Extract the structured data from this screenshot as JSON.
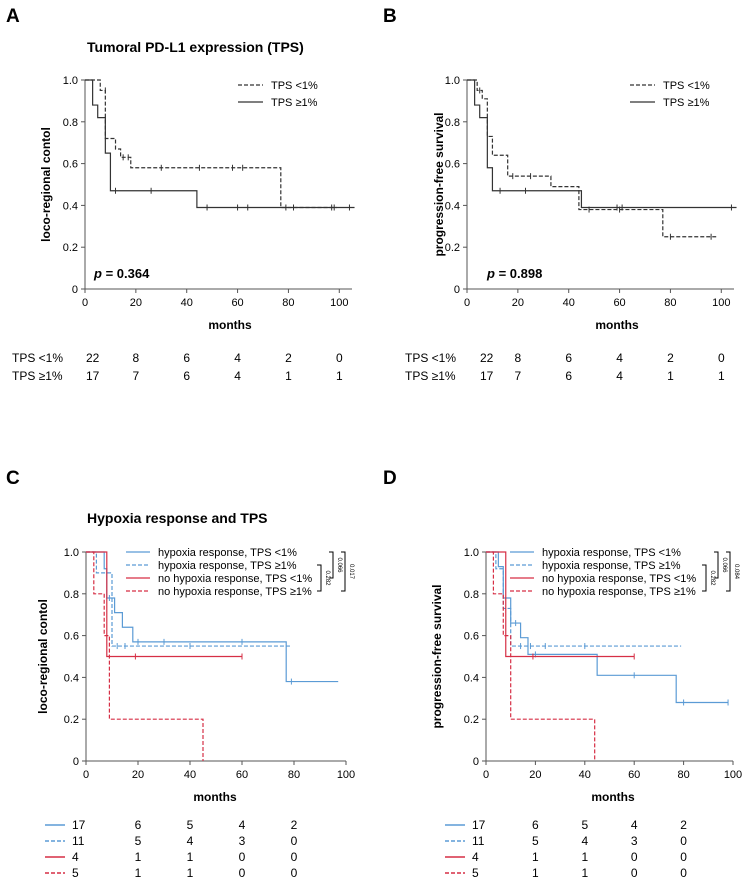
{
  "figure": {
    "title_top": "Tumoral PD-L1 expression (TPS)",
    "title_bottom": "Hypoxia response and TPS",
    "panel_labels": [
      "A",
      "B",
      "C",
      "D"
    ]
  },
  "chart_data": [
    {
      "panel": "A",
      "type": "line",
      "subtype": "kaplan-meier",
      "ylabel": "loco-regional contol",
      "xlabel": "months",
      "xlim": [
        0,
        105
      ],
      "ylim": [
        0,
        1.0
      ],
      "xticks": [
        0,
        20,
        40,
        60,
        80,
        100
      ],
      "yticks": [
        0,
        0.2,
        0.4,
        0.6,
        0.8,
        1.0
      ],
      "p_value": "0.364",
      "series": [
        {
          "name": "TPS <1%",
          "style": "dashed",
          "color": "#333333",
          "steps": [
            [
              0,
              1.0
            ],
            [
              6,
              0.95
            ],
            [
              8,
              0.72
            ],
            [
              12,
              0.67
            ],
            [
              14,
              0.63
            ],
            [
              18,
              0.58
            ],
            [
              77,
              0.39
            ],
            [
              99,
              0.39
            ]
          ],
          "censors": [
            [
              8,
              0.95
            ],
            [
              15,
              0.63
            ],
            [
              17,
              0.63
            ],
            [
              30,
              0.58
            ],
            [
              45,
              0.58
            ],
            [
              58,
              0.58
            ],
            [
              62,
              0.58
            ],
            [
              82,
              0.39
            ],
            [
              97,
              0.39
            ]
          ]
        },
        {
          "name": "TPS ≥1%",
          "style": "solid",
          "color": "#333333",
          "steps": [
            [
              0,
              1.0
            ],
            [
              3,
              0.88
            ],
            [
              5,
              0.82
            ],
            [
              8,
              0.65
            ],
            [
              10,
              0.47
            ],
            [
              44,
              0.39
            ],
            [
              106,
              0.39
            ]
          ],
          "censors": [
            [
              12,
              0.47
            ],
            [
              26,
              0.47
            ],
            [
              48,
              0.39
            ],
            [
              60,
              0.39
            ],
            [
              64,
              0.39
            ],
            [
              79,
              0.39
            ],
            [
              98,
              0.39
            ],
            [
              104,
              0.39
            ]
          ]
        }
      ],
      "at_risk": {
        "times": [
          0,
          20,
          40,
          60,
          80,
          100
        ],
        "rows": [
          {
            "label": "TPS <1%",
            "values": [
              "22",
              "8",
              "6",
              "4",
              "2",
              "0"
            ]
          },
          {
            "label": "TPS ≥1%",
            "values": [
              "17",
              "7",
              "6",
              "4",
              "1",
              "1"
            ]
          }
        ]
      }
    },
    {
      "panel": "B",
      "type": "line",
      "subtype": "kaplan-meier",
      "ylabel": "progression-free survival",
      "xlabel": "months",
      "xlim": [
        0,
        105
      ],
      "ylim": [
        0,
        1.0
      ],
      "xticks": [
        0,
        20,
        40,
        60,
        80,
        100
      ],
      "yticks": [
        0,
        0.2,
        0.4,
        0.6,
        0.8,
        1.0
      ],
      "p_value": "0.898",
      "series": [
        {
          "name": "TPS <1%",
          "style": "dashed",
          "color": "#333333",
          "steps": [
            [
              0,
              1.0
            ],
            [
              4,
              0.95
            ],
            [
              6,
              0.91
            ],
            [
              8,
              0.73
            ],
            [
              10,
              0.64
            ],
            [
              16,
              0.54
            ],
            [
              33,
              0.49
            ],
            [
              44,
              0.38
            ],
            [
              57,
              0.38
            ],
            [
              64,
              0.38
            ],
            [
              77,
              0.25
            ],
            [
              98,
              0.25
            ]
          ],
          "censors": [
            [
              5,
              0.95
            ],
            [
              18,
              0.54
            ],
            [
              25,
              0.54
            ],
            [
              48,
              0.38
            ],
            [
              60,
              0.38
            ],
            [
              80,
              0.25
            ],
            [
              96,
              0.25
            ]
          ]
        },
        {
          "name": "TPS ≥1%",
          "style": "solid",
          "color": "#333333",
          "steps": [
            [
              0,
              1.0
            ],
            [
              3,
              0.88
            ],
            [
              5,
              0.82
            ],
            [
              8,
              0.58
            ],
            [
              10,
              0.47
            ],
            [
              45,
              0.39
            ],
            [
              106,
              0.39
            ]
          ],
          "censors": [
            [
              13,
              0.47
            ],
            [
              23,
              0.47
            ],
            [
              59,
              0.39
            ],
            [
              61,
              0.39
            ],
            [
              104,
              0.39
            ]
          ]
        }
      ],
      "at_risk": {
        "times": [
          0,
          20,
          40,
          60,
          80,
          100
        ],
        "rows": [
          {
            "label": "TPS <1%",
            "values": [
              "22",
              "8",
              "6",
              "4",
              "2",
              "0"
            ]
          },
          {
            "label": "TPS ≥1%",
            "values": [
              "17",
              "7",
              "6",
              "4",
              "1",
              "1"
            ]
          }
        ]
      }
    },
    {
      "panel": "C",
      "type": "line",
      "subtype": "kaplan-meier",
      "ylabel": "loco-regional contol",
      "xlabel": "months",
      "xlim": [
        0,
        100
      ],
      "ylim": [
        0,
        1.0
      ],
      "xticks": [
        0,
        20,
        40,
        60,
        80,
        100
      ],
      "yticks": [
        0,
        0.2,
        0.4,
        0.6,
        0.8,
        1.0
      ],
      "brackets": [
        "0.066",
        "0.017",
        "0.282"
      ],
      "series": [
        {
          "name": "hypoxia response, TPS <1%",
          "style": "solid",
          "color": "#5b9bd5",
          "steps": [
            [
              0,
              1.0
            ],
            [
              7,
              0.92
            ],
            [
              8,
              0.78
            ],
            [
              11,
              0.71
            ],
            [
              14,
              0.64
            ],
            [
              18,
              0.57
            ],
            [
              77,
              0.38
            ],
            [
              97,
              0.38
            ]
          ],
          "censors": [
            [
              9,
              0.78
            ],
            [
              20,
              0.57
            ],
            [
              30,
              0.57
            ],
            [
              60,
              0.57
            ],
            [
              79,
              0.38
            ]
          ]
        },
        {
          "name": "hypoxia response, TPS ≥1%",
          "style": "dashed",
          "color": "#5b9bd5",
          "steps": [
            [
              0,
              1.0
            ],
            [
              4,
              0.9
            ],
            [
              10,
              0.55
            ],
            [
              79,
              0.55
            ]
          ],
          "censors": [
            [
              12,
              0.55
            ],
            [
              15,
              0.55
            ],
            [
              40,
              0.55
            ]
          ]
        },
        {
          "name": "no hypoxia response, TPS <1%",
          "style": "solid",
          "color": "#d62f45",
          "steps": [
            [
              0,
              1.0
            ],
            [
              8,
              0.5
            ],
            [
              60,
              0.5
            ]
          ],
          "censors": [
            [
              19,
              0.5
            ],
            [
              60,
              0.5
            ]
          ]
        },
        {
          "name": "no hypoxia response, TPS ≥1%",
          "style": "dashed",
          "color": "#d62f45",
          "steps": [
            [
              0,
              1.0
            ],
            [
              3,
              0.8
            ],
            [
              7,
              0.6
            ],
            [
              9,
              0.2
            ],
            [
              45,
              0.0
            ]
          ],
          "censors": []
        }
      ],
      "at_risk": {
        "times": [
          0,
          20,
          40,
          60,
          80
        ],
        "rows": [
          {
            "label": "",
            "style": "solid",
            "color": "#5b9bd5",
            "values": [
              "17",
              "6",
              "5",
              "4",
              "2"
            ]
          },
          {
            "label": "",
            "style": "dashed",
            "color": "#5b9bd5",
            "values": [
              "11",
              "5",
              "4",
              "3",
              "0"
            ]
          },
          {
            "label": "",
            "style": "solid",
            "color": "#d62f45",
            "values": [
              "4",
              "1",
              "1",
              "0",
              "0"
            ]
          },
          {
            "label": "",
            "style": "dashed",
            "color": "#d62f45",
            "values": [
              "5",
              "1",
              "1",
              "0",
              "0"
            ]
          }
        ]
      }
    },
    {
      "panel": "D",
      "type": "line",
      "subtype": "kaplan-meier",
      "ylabel": "progression-free survival",
      "xlabel": "months",
      "xlim": [
        0,
        100
      ],
      "ylim": [
        0,
        1.0
      ],
      "xticks": [
        0,
        20,
        40,
        60,
        80,
        100
      ],
      "yticks": [
        0,
        0.2,
        0.4,
        0.6,
        0.8,
        1.0
      ],
      "brackets": [
        "0.066",
        "0.084",
        "0.282"
      ],
      "series": [
        {
          "name": "hypoxia response, TPS <1%",
          "style": "solid",
          "color": "#5b9bd5",
          "steps": [
            [
              0,
              1.0
            ],
            [
              5,
              0.93
            ],
            [
              7,
              0.78
            ],
            [
              10,
              0.66
            ],
            [
              14,
              0.59
            ],
            [
              17,
              0.51
            ],
            [
              45,
              0.41
            ],
            [
              77,
              0.28
            ],
            [
              98,
              0.28
            ]
          ],
          "censors": [
            [
              12,
              0.66
            ],
            [
              20,
              0.51
            ],
            [
              60,
              0.41
            ],
            [
              80,
              0.28
            ],
            [
              98,
              0.28
            ]
          ]
        },
        {
          "name": "hypoxia response, TPS ≥1%",
          "style": "dashed",
          "color": "#5b9bd5",
          "steps": [
            [
              0,
              1.0
            ],
            [
              4,
              0.92
            ],
            [
              7,
              0.73
            ],
            [
              10,
              0.55
            ],
            [
              79,
              0.55
            ]
          ],
          "censors": [
            [
              14,
              0.55
            ],
            [
              18,
              0.55
            ],
            [
              24,
              0.55
            ],
            [
              40,
              0.55
            ]
          ]
        },
        {
          "name": "no hypoxia response, TPS <1%",
          "style": "solid",
          "color": "#d62f45",
          "steps": [
            [
              0,
              1.0
            ],
            [
              8,
              0.5
            ],
            [
              60,
              0.5
            ]
          ],
          "censors": [
            [
              19,
              0.5
            ],
            [
              60,
              0.5
            ]
          ]
        },
        {
          "name": "no hypoxia response, TPS ≥1%",
          "style": "dashed",
          "color": "#d62f45",
          "steps": [
            [
              0,
              1.0
            ],
            [
              3,
              0.8
            ],
            [
              7,
              0.6
            ],
            [
              10,
              0.2
            ],
            [
              44,
              0.0
            ]
          ],
          "censors": []
        }
      ],
      "at_risk": {
        "times": [
          0,
          20,
          40,
          60,
          80
        ],
        "rows": [
          {
            "label": "",
            "style": "solid",
            "color": "#5b9bd5",
            "values": [
              "17",
              "6",
              "5",
              "4",
              "2"
            ]
          },
          {
            "label": "",
            "style": "dashed",
            "color": "#5b9bd5",
            "values": [
              "11",
              "5",
              "4",
              "3",
              "0"
            ]
          },
          {
            "label": "",
            "style": "solid",
            "color": "#d62f45",
            "values": [
              "4",
              "1",
              "1",
              "0",
              "0"
            ]
          },
          {
            "label": "",
            "style": "dashed",
            "color": "#d62f45",
            "values": [
              "5",
              "1",
              "1",
              "0",
              "0"
            ]
          }
        ]
      }
    }
  ]
}
